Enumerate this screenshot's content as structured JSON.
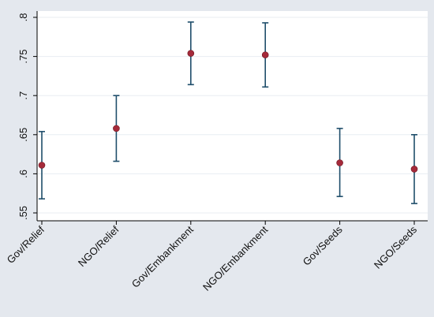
{
  "chart_data": {
    "type": "scatter",
    "title": "",
    "xlabel": "",
    "ylabel": "",
    "categories": [
      "Gov/Relief",
      "NGO/Relief",
      "Gov/Embankment",
      "NGO/Embankment",
      "Gov/Seeds",
      "NGO/Seeds"
    ],
    "values": [
      0.611,
      0.658,
      0.754,
      0.752,
      0.614,
      0.606
    ],
    "ci_lower": [
      0.568,
      0.616,
      0.714,
      0.711,
      0.571,
      0.562
    ],
    "ci_upper": [
      0.654,
      0.7,
      0.794,
      0.793,
      0.658,
      0.65
    ],
    "ylim": [
      0.55,
      0.8
    ],
    "yticks": [
      0.55,
      0.6,
      0.65,
      0.7,
      0.75,
      0.8
    ],
    "ytick_labels": [
      ".55",
      ".6",
      ".65",
      ".7",
      ".75",
      ".8"
    ],
    "grid": true,
    "legend": "none",
    "colors": {
      "background": "#e4e8ee",
      "plot_area": "#ffffff",
      "marker": "#a52a3a",
      "error_bar": "#1f4e6b",
      "grid": "#e8edf2"
    }
  }
}
